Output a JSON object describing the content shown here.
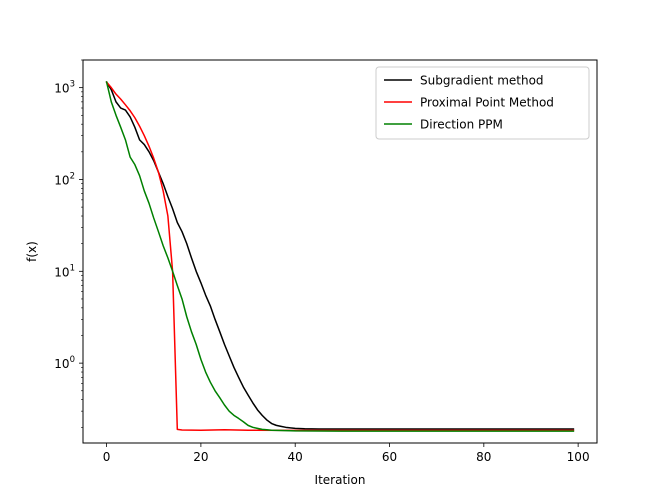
{
  "chart_data": {
    "type": "line",
    "xlabel": "Iteration",
    "ylabel": "f(x)",
    "xlim": [
      -5,
      104
    ],
    "ylim": [
      0.135,
      2000
    ],
    "yscale": "log",
    "grid": false,
    "legend_position": "top-right",
    "x_ticks": [
      {
        "value": 0,
        "label": "0"
      },
      {
        "value": 20,
        "label": "20"
      },
      {
        "value": 40,
        "label": "40"
      },
      {
        "value": 60,
        "label": "60"
      },
      {
        "value": 80,
        "label": "80"
      },
      {
        "value": 100,
        "label": "100"
      }
    ],
    "y_ticks": [
      {
        "value": 1,
        "base": "10",
        "exp": "0"
      },
      {
        "value": 10,
        "base": "10",
        "exp": "1"
      },
      {
        "value": 100,
        "base": "10",
        "exp": "2"
      },
      {
        "value": 1000,
        "base": "10",
        "exp": "3"
      }
    ],
    "series": [
      {
        "name": "Subgradient method",
        "color": "#000000",
        "points": [
          [
            0,
            1150
          ],
          [
            1,
            950
          ],
          [
            2,
            700
          ],
          [
            3,
            600
          ],
          [
            4,
            570
          ],
          [
            5,
            480
          ],
          [
            6,
            370
          ],
          [
            7,
            270
          ],
          [
            8,
            240
          ],
          [
            9,
            200
          ],
          [
            10,
            160
          ],
          [
            11,
            120
          ],
          [
            12,
            90
          ],
          [
            13,
            65
          ],
          [
            14,
            48
          ],
          [
            15,
            34
          ],
          [
            16,
            27
          ],
          [
            17,
            20
          ],
          [
            18,
            14
          ],
          [
            19,
            10
          ],
          [
            20,
            7.5
          ],
          [
            21,
            5.5
          ],
          [
            22,
            4.2
          ],
          [
            23,
            3.0
          ],
          [
            24,
            2.2
          ],
          [
            25,
            1.6
          ],
          [
            26,
            1.2
          ],
          [
            27,
            0.9
          ],
          [
            28,
            0.7
          ],
          [
            29,
            0.55
          ],
          [
            30,
            0.45
          ],
          [
            31,
            0.37
          ],
          [
            32,
            0.31
          ],
          [
            33,
            0.27
          ],
          [
            34,
            0.24
          ],
          [
            35,
            0.22
          ],
          [
            36,
            0.21
          ],
          [
            37,
            0.205
          ],
          [
            38,
            0.2
          ],
          [
            39,
            0.197
          ],
          [
            40,
            0.195
          ],
          [
            42,
            0.193
          ],
          [
            45,
            0.192
          ],
          [
            50,
            0.192
          ],
          [
            60,
            0.192
          ],
          [
            70,
            0.192
          ],
          [
            80,
            0.192
          ],
          [
            90,
            0.192
          ],
          [
            99,
            0.192
          ]
        ]
      },
      {
        "name": "Proximal Point Method",
        "color": "#ff0000",
        "points": [
          [
            0,
            1150
          ],
          [
            1,
            1000
          ],
          [
            2,
            850
          ],
          [
            3,
            750
          ],
          [
            4,
            650
          ],
          [
            5,
            560
          ],
          [
            6,
            470
          ],
          [
            7,
            380
          ],
          [
            8,
            300
          ],
          [
            9,
            230
          ],
          [
            10,
            170
          ],
          [
            11,
            120
          ],
          [
            12,
            75
          ],
          [
            13,
            40
          ],
          [
            14,
            10
          ],
          [
            15,
            0.19
          ],
          [
            16,
            0.187
          ],
          [
            20,
            0.186
          ],
          [
            25,
            0.188
          ],
          [
            30,
            0.186
          ],
          [
            40,
            0.185
          ],
          [
            50,
            0.185
          ],
          [
            60,
            0.185
          ],
          [
            70,
            0.185
          ],
          [
            80,
            0.185
          ],
          [
            90,
            0.185
          ],
          [
            99,
            0.185
          ]
        ]
      },
      {
        "name": "Direction PPM",
        "color": "#008000",
        "points": [
          [
            0,
            1150
          ],
          [
            1,
            700
          ],
          [
            2,
            500
          ],
          [
            3,
            370
          ],
          [
            4,
            270
          ],
          [
            5,
            175
          ],
          [
            6,
            145
          ],
          [
            7,
            110
          ],
          [
            8,
            75
          ],
          [
            9,
            55
          ],
          [
            10,
            38
          ],
          [
            11,
            27
          ],
          [
            12,
            19
          ],
          [
            13,
            14
          ],
          [
            14,
            10
          ],
          [
            15,
            7
          ],
          [
            16,
            5
          ],
          [
            17,
            3.2
          ],
          [
            18,
            2.2
          ],
          [
            19,
            1.6
          ],
          [
            20,
            1.1
          ],
          [
            21,
            0.8
          ],
          [
            22,
            0.62
          ],
          [
            23,
            0.5
          ],
          [
            24,
            0.42
          ],
          [
            25,
            0.35
          ],
          [
            26,
            0.3
          ],
          [
            27,
            0.27
          ],
          [
            28,
            0.25
          ],
          [
            29,
            0.23
          ],
          [
            30,
            0.21
          ],
          [
            31,
            0.2
          ],
          [
            32,
            0.195
          ],
          [
            33,
            0.19
          ],
          [
            34,
            0.188
          ],
          [
            35,
            0.186
          ],
          [
            40,
            0.183
          ],
          [
            50,
            0.182
          ],
          [
            60,
            0.182
          ],
          [
            70,
            0.182
          ],
          [
            80,
            0.182
          ],
          [
            90,
            0.182
          ],
          [
            99,
            0.182
          ]
        ]
      }
    ]
  }
}
